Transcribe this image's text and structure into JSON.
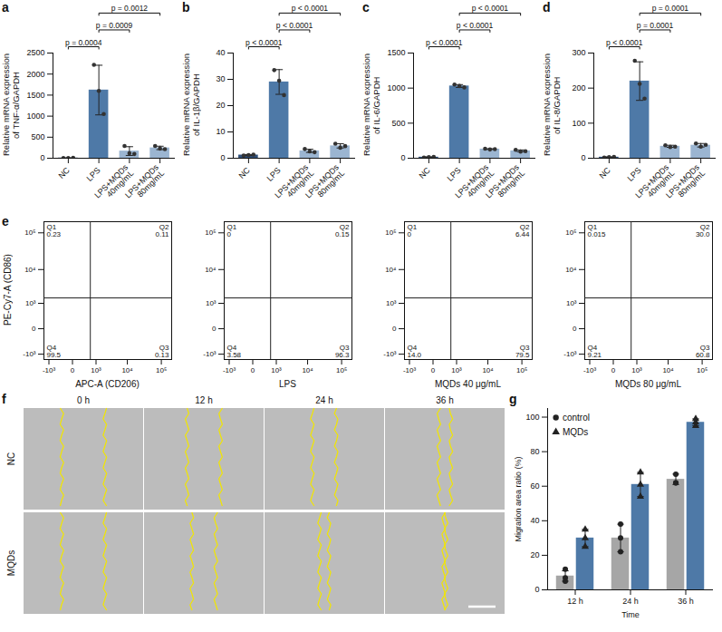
{
  "chart_data": [
    {
      "type": "bar",
      "panel": "a",
      "ylabel": "Relative mRNA expression of TNF-α/GAPDH",
      "categories": [
        "NC",
        "LPS",
        "LPS+MQDs 40mg/mL",
        "LPS+MQDs 80mg/mL"
      ],
      "values": [
        5,
        1620,
        170,
        245
      ],
      "errors": [
        3,
        590,
        104,
        40
      ],
      "points": [
        [
          2,
          5,
          8
        ],
        [
          2220,
          1600,
          1050
        ],
        [
          290,
          120,
          100
        ],
        [
          290,
          230,
          215
        ]
      ],
      "colors": [
        "#2f4f7a",
        "#4e79a7",
        "#9bb5d1",
        "#9bb5d1"
      ],
      "ylim": [
        0,
        2500
      ],
      "yticks": [
        0,
        500,
        1000,
        1500,
        2000,
        2500
      ],
      "comparisons": [
        {
          "pair": [
            0,
            1
          ],
          "label": "p = 0.0004"
        },
        {
          "pair": [
            1,
            2
          ],
          "label": "p = 0.0009"
        },
        {
          "pair": [
            1,
            3
          ],
          "label": "p = 0.0012"
        }
      ]
    },
    {
      "type": "bar",
      "panel": "b",
      "ylabel": "Relative mRNA expression of IL-1β/GAPDH",
      "categories": [
        "NC",
        "LPS",
        "LPS+MQDs 40mg/mL",
        "LPS+MQDs 80mg/mL"
      ],
      "values": [
        1.2,
        29,
        2.8,
        4.7
      ],
      "errors": [
        0.2,
        4.7,
        0.6,
        0.8
      ],
      "points": [
        [
          1.0,
          1.2,
          1.4
        ],
        [
          33.5,
          29.5,
          24
        ],
        [
          3.5,
          2.6,
          2.3
        ],
        [
          5.5,
          4.0,
          4.6
        ]
      ],
      "colors": [
        "#2f4f7a",
        "#4e79a7",
        "#9bb5d1",
        "#9bb5d1"
      ],
      "ylim": [
        0,
        40
      ],
      "yticks": [
        0,
        10,
        20,
        30,
        40
      ],
      "comparisons": [
        {
          "pair": [
            0,
            1
          ],
          "label": "p < 0.0001"
        },
        {
          "pair": [
            1,
            2
          ],
          "label": "p < 0.0001"
        },
        {
          "pair": [
            1,
            3
          ],
          "label": "p < 0.0001"
        }
      ]
    },
    {
      "type": "bar",
      "panel": "c",
      "ylabel": "Relative mRNA expression of IL-6/GAPDH",
      "categories": [
        "NC",
        "LPS",
        "LPS+MQDs 40mg/mL",
        "LPS+MQDs 80mg/mL"
      ],
      "values": [
        15,
        1030,
        130,
        105
      ],
      "errors": [
        5,
        20,
        5,
        13
      ],
      "points": [
        [
          10,
          15,
          20
        ],
        [
          1050,
          1030,
          1010
        ],
        [
          135,
          125,
          130
        ],
        [
          120,
          95,
          100
        ]
      ],
      "colors": [
        "#2f4f7a",
        "#4e79a7",
        "#9bb5d1",
        "#9bb5d1"
      ],
      "ylim": [
        0,
        1500
      ],
      "yticks": [
        0,
        500,
        1000,
        1500
      ],
      "comparisons": [
        {
          "pair": [
            0,
            1
          ],
          "label": "p < 0.0001"
        },
        {
          "pair": [
            1,
            2
          ],
          "label": "p < 0.0001"
        },
        {
          "pair": [
            1,
            3
          ],
          "label": "p < 0.0001"
        }
      ]
    },
    {
      "type": "bar",
      "panel": "d",
      "ylabel": "Relative mRNA expression of IL-8/GAPDH",
      "categories": [
        "NC",
        "LPS",
        "LPS+MQDs 40mg/mL",
        "LPS+MQDs 80mg/mL"
      ],
      "values": [
        3,
        220,
        34,
        37
      ],
      "errors": [
        1,
        55,
        3,
        5
      ],
      "points": [
        [
          2,
          3,
          4
        ],
        [
          278,
          212,
          170
        ],
        [
          37,
          32,
          33
        ],
        [
          42,
          33,
          38
        ]
      ],
      "colors": [
        "#2f4f7a",
        "#4e79a7",
        "#9bb5d1",
        "#9bb5d1"
      ],
      "ylim": [
        0,
        300
      ],
      "yticks": [
        0,
        100,
        200,
        300
      ],
      "comparisons": [
        {
          "pair": [
            0,
            1
          ],
          "label": "p < 0.0001"
        },
        {
          "pair": [
            1,
            2
          ],
          "label": "p = 0.0001"
        },
        {
          "pair": [
            1,
            3
          ],
          "label": "p = 0.0001"
        }
      ]
    },
    {
      "type": "scatter",
      "panel": "e",
      "xlabel": "APC-A (CD206)",
      "ylabel": "PE-Cy7-A (CD86)",
      "log": true,
      "xlim": [
        -1500,
        200000
      ],
      "ylim": [
        -1500,
        200000
      ],
      "xticks": [
        {
          "value": -1000,
          "label": "-10³"
        },
        0,
        {
          "value": 1000,
          "label": "10³"
        },
        {
          "value": 10000,
          "label": "10⁴"
        },
        {
          "value": 100000,
          "label": "10⁵"
        }
      ],
      "yticks": [
        {
          "value": -1000,
          "label": "-10³"
        },
        0,
        {
          "value": 1000,
          "label": "10³"
        },
        {
          "value": 10000,
          "label": "10⁴"
        },
        {
          "value": 100000,
          "label": "10⁵"
        }
      ],
      "gates": {
        "x": 600,
        "y": 1500
      },
      "quadrants": [
        "Q1",
        "Q2",
        "Q3",
        "Q4"
      ],
      "plots": [
        {
          "values": [
            0.23,
            0.11,
            0.13,
            99.5
          ]
        },
        {
          "name": "LPS",
          "values": [
            0,
            0.15,
            96.3,
            3.58
          ]
        },
        {
          "name": "MQDs 40 μg/mL",
          "values": [
            0,
            6.44,
            79.5,
            14
          ],
          "value_labels": [
            "0",
            "6.44",
            "79.5",
            "14.0"
          ]
        },
        {
          "name": "MQDs 80 μg/mL",
          "values": [
            0.015,
            30,
            60.8,
            9.21
          ],
          "value_labels": [
            "0.015",
            "30.0",
            "60.8",
            "9.21"
          ]
        }
      ]
    },
    {
      "type": "image",
      "panel": "f",
      "columns": [
        "0 h",
        "12 h",
        "24 h",
        "36 h"
      ],
      "rows": [
        "NC",
        "MQDs"
      ]
    },
    {
      "type": "bar",
      "panel": "g",
      "xlabel": "Time",
      "ylabel": "Migration area ratio (%)",
      "categories": [
        "12 h",
        "24 h",
        "36 h"
      ],
      "ylim": [
        0,
        105
      ],
      "yticks": [
        0,
        20,
        40,
        60,
        80,
        100
      ],
      "legend": "top-left",
      "series": [
        {
          "name": "control",
          "color": "#a6a6a6",
          "marker": "circle",
          "values": [
            8,
            30,
            64
          ],
          "errors": [
            3,
            8,
            3
          ],
          "points": [
            [
              12,
              7,
              5
            ],
            [
              38,
              30,
              22
            ],
            [
              67,
              62,
              62
            ]
          ]
        },
        {
          "name": "MQDs",
          "color": "#4e79a7",
          "marker": "triangle",
          "values": [
            30,
            61,
            97
          ],
          "errors": [
            5,
            7,
            2
          ],
          "points": [
            [
              35,
              30,
              25
            ],
            [
              68,
              61,
              54
            ],
            [
              99,
              97,
              95
            ]
          ]
        }
      ]
    }
  ]
}
